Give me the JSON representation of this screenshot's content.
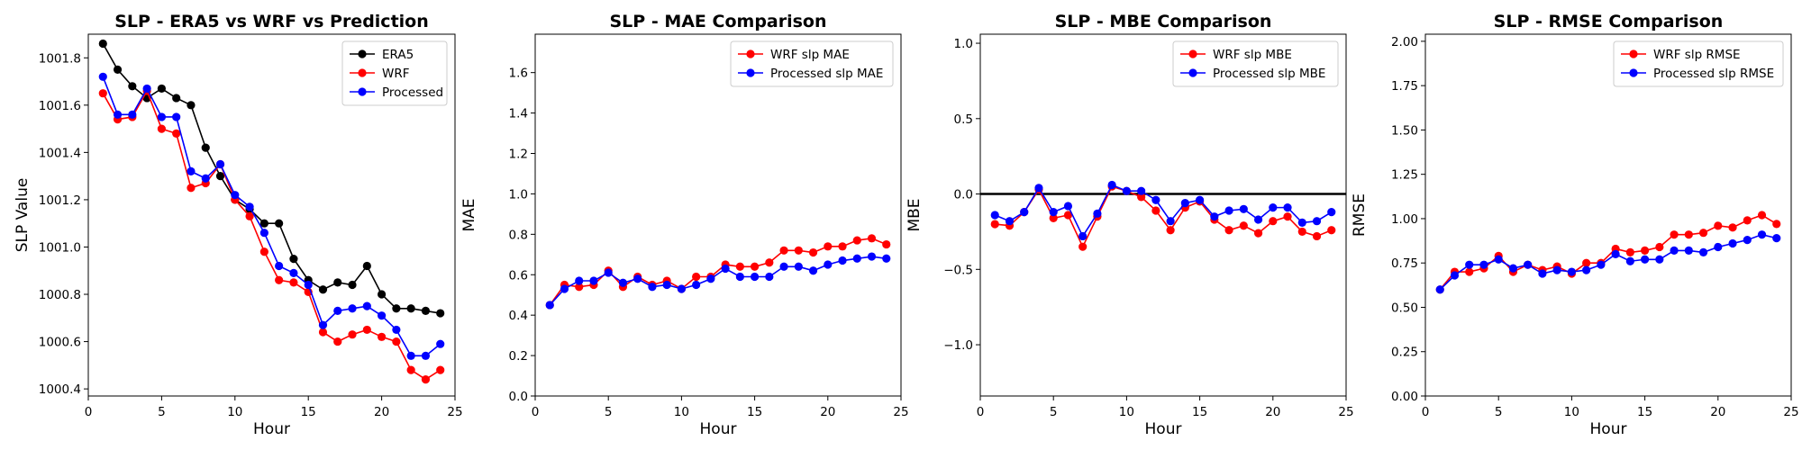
{
  "chart_data": [
    {
      "type": "line",
      "title": "SLP - ERA5 vs WRF vs Prediction",
      "xlabel": "Hour",
      "ylabel": "SLP Value",
      "xlim": [
        0,
        25
      ],
      "ylim": [
        1000.37,
        1001.9
      ],
      "xticks": [
        0,
        5,
        10,
        15,
        20,
        25
      ],
      "yticks": [
        1000.4,
        1000.6,
        1000.8,
        1001.0,
        1001.2,
        1001.4,
        1001.6,
        1001.8
      ],
      "ytick_decimals": 1,
      "legend_position": "top-right",
      "x": [
        1,
        2,
        3,
        4,
        5,
        6,
        7,
        8,
        9,
        10,
        11,
        12,
        13,
        14,
        15,
        16,
        17,
        18,
        19,
        20,
        21,
        22,
        23,
        24
      ],
      "series": [
        {
          "name": "ERA5",
          "color": "#000000",
          "values": [
            1001.86,
            1001.75,
            1001.68,
            1001.63,
            1001.67,
            1001.63,
            1001.6,
            1001.42,
            1001.3,
            1001.2,
            1001.16,
            1001.1,
            1001.1,
            1000.95,
            1000.86,
            1000.82,
            1000.85,
            1000.84,
            1000.92,
            1000.8,
            1000.74,
            1000.74,
            1000.73,
            1000.72
          ]
        },
        {
          "name": "WRF",
          "color": "#ff0000",
          "values": [
            1001.65,
            1001.54,
            1001.55,
            1001.66,
            1001.5,
            1001.48,
            1001.25,
            1001.27,
            1001.35,
            1001.2,
            1001.13,
            1000.98,
            1000.86,
            1000.85,
            1000.81,
            1000.64,
            1000.6,
            1000.63,
            1000.65,
            1000.62,
            1000.6,
            1000.48,
            1000.44,
            1000.48
          ]
        },
        {
          "name": "Processed",
          "color": "#0000ff",
          "values": [
            1001.72,
            1001.56,
            1001.56,
            1001.67,
            1001.55,
            1001.55,
            1001.32,
            1001.29,
            1001.35,
            1001.22,
            1001.17,
            1001.06,
            1000.92,
            1000.89,
            1000.84,
            1000.67,
            1000.73,
            1000.74,
            1000.75,
            1000.71,
            1000.65,
            1000.54,
            1000.54,
            1000.59
          ]
        }
      ]
    },
    {
      "type": "line",
      "title": "SLP - MAE Comparison",
      "xlabel": "Hour",
      "ylabel": "MAE",
      "xlim": [
        0,
        25
      ],
      "ylim": [
        0,
        1.79
      ],
      "xticks": [
        0,
        5,
        10,
        15,
        20,
        25
      ],
      "yticks": [
        0.0,
        0.2,
        0.4,
        0.6,
        0.8,
        1.0,
        1.2,
        1.4,
        1.6
      ],
      "ytick_decimals": 1,
      "legend_position": "top-right",
      "x": [
        1,
        2,
        3,
        4,
        5,
        6,
        7,
        8,
        9,
        10,
        11,
        12,
        13,
        14,
        15,
        16,
        17,
        18,
        19,
        20,
        21,
        22,
        23,
        24
      ],
      "series": [
        {
          "name": "WRF slp MAE",
          "color": "#ff0000",
          "values": [
            0.45,
            0.55,
            0.54,
            0.55,
            0.62,
            0.54,
            0.59,
            0.55,
            0.57,
            0.53,
            0.59,
            0.59,
            0.65,
            0.64,
            0.64,
            0.66,
            0.72,
            0.72,
            0.71,
            0.74,
            0.74,
            0.77,
            0.78,
            0.75
          ]
        },
        {
          "name": "Processed slp MAE",
          "color": "#0000ff",
          "values": [
            0.45,
            0.53,
            0.57,
            0.57,
            0.61,
            0.56,
            0.58,
            0.54,
            0.55,
            0.53,
            0.55,
            0.58,
            0.63,
            0.59,
            0.59,
            0.59,
            0.64,
            0.64,
            0.62,
            0.65,
            0.67,
            0.68,
            0.69,
            0.68
          ]
        }
      ]
    },
    {
      "type": "line",
      "title": "SLP - MBE Comparison",
      "xlabel": "Hour",
      "ylabel": "MBE",
      "xlim": [
        0,
        25
      ],
      "ylim": [
        -1.34,
        1.06
      ],
      "xticks": [
        0,
        5,
        10,
        15,
        20,
        25
      ],
      "yticks": [
        -1.0,
        -0.5,
        0.0,
        0.5,
        1.0
      ],
      "ytick_decimals": 1,
      "hline": 0,
      "legend_position": "top-right",
      "x": [
        1,
        2,
        3,
        4,
        5,
        6,
        7,
        8,
        9,
        10,
        11,
        12,
        13,
        14,
        15,
        16,
        17,
        18,
        19,
        20,
        21,
        22,
        23,
        24
      ],
      "series": [
        {
          "name": "WRF slp MBE",
          "color": "#ff0000",
          "values": [
            -0.2,
            -0.21,
            -0.12,
            0.03,
            -0.16,
            -0.14,
            -0.35,
            -0.15,
            0.05,
            0.02,
            -0.02,
            -0.11,
            -0.24,
            -0.09,
            -0.05,
            -0.17,
            -0.24,
            -0.21,
            -0.26,
            -0.18,
            -0.15,
            -0.25,
            -0.28,
            -0.24
          ]
        },
        {
          "name": "Processed slp MBE",
          "color": "#0000ff",
          "values": [
            -0.14,
            -0.18,
            -0.12,
            0.04,
            -0.12,
            -0.08,
            -0.28,
            -0.13,
            0.06,
            0.02,
            0.02,
            -0.04,
            -0.18,
            -0.06,
            -0.04,
            -0.15,
            -0.11,
            -0.1,
            -0.17,
            -0.09,
            -0.09,
            -0.19,
            -0.18,
            -0.12
          ]
        }
      ]
    },
    {
      "type": "line",
      "title": "SLP - RMSE Comparison",
      "xlabel": "Hour",
      "ylabel": "RMSE",
      "xlim": [
        0,
        25
      ],
      "ylim": [
        0,
        2.04
      ],
      "xticks": [
        0,
        5,
        10,
        15,
        20,
        25
      ],
      "yticks": [
        0.0,
        0.25,
        0.5,
        0.75,
        1.0,
        1.25,
        1.5,
        1.75,
        2.0
      ],
      "ytick_decimals": 2,
      "legend_position": "top-right",
      "x": [
        1,
        2,
        3,
        4,
        5,
        6,
        7,
        8,
        9,
        10,
        11,
        12,
        13,
        14,
        15,
        16,
        17,
        18,
        19,
        20,
        21,
        22,
        23,
        24
      ],
      "series": [
        {
          "name": "WRF slp RMSE",
          "color": "#ff0000",
          "values": [
            0.6,
            0.7,
            0.7,
            0.72,
            0.79,
            0.7,
            0.74,
            0.71,
            0.73,
            0.69,
            0.75,
            0.75,
            0.83,
            0.81,
            0.82,
            0.84,
            0.91,
            0.91,
            0.92,
            0.96,
            0.95,
            0.99,
            1.02,
            0.97
          ]
        },
        {
          "name": "Processed slp RMSE",
          "color": "#0000ff",
          "values": [
            0.6,
            0.68,
            0.74,
            0.74,
            0.77,
            0.72,
            0.74,
            0.69,
            0.71,
            0.7,
            0.71,
            0.74,
            0.8,
            0.76,
            0.77,
            0.77,
            0.82,
            0.82,
            0.81,
            0.84,
            0.86,
            0.88,
            0.91,
            0.89
          ]
        }
      ]
    }
  ]
}
